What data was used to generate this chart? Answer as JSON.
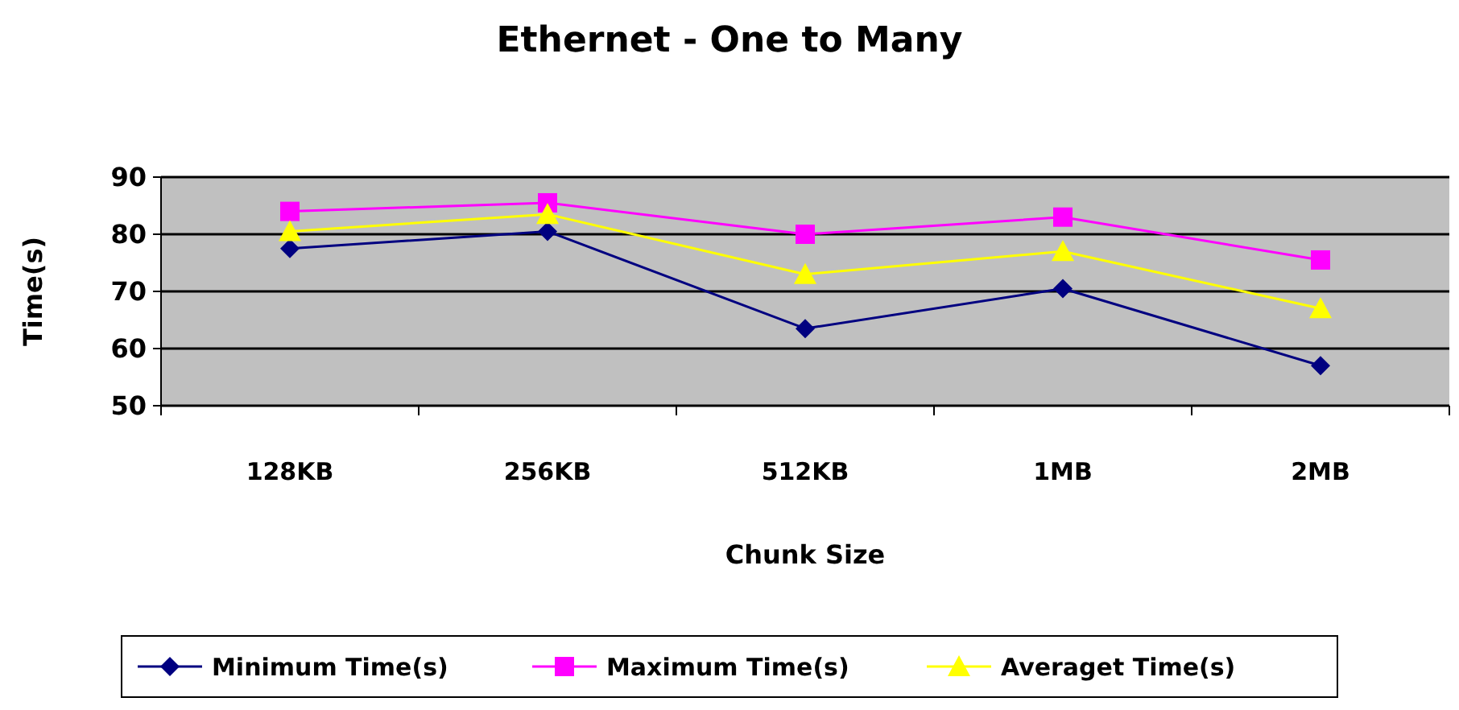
{
  "chart_data": {
    "type": "line",
    "title": "Ethernet - One to Many",
    "xlabel": "Chunk Size",
    "ylabel": "Time(s)",
    "categories": [
      "128KB",
      "256KB",
      "512KB",
      "1MB",
      "2MB"
    ],
    "series": [
      {
        "name": "Minimum Time(s)",
        "color": "#000080",
        "marker": "diamond",
        "values": [
          77.5,
          80.5,
          63.5,
          70.5,
          57
        ]
      },
      {
        "name": "Maximum Time(s)",
        "color": "#ff00ff",
        "marker": "square",
        "values": [
          84,
          85.5,
          80,
          83,
          75.5
        ]
      },
      {
        "name": "Averaget Time(s)",
        "color": "#ffff00",
        "marker": "triangle",
        "values": [
          80.5,
          83.5,
          73,
          77,
          67
        ]
      }
    ],
    "ylim": [
      50,
      90
    ],
    "yticks": [
      50,
      60,
      70,
      80,
      90
    ],
    "grid": "y",
    "legend": "bottom"
  }
}
